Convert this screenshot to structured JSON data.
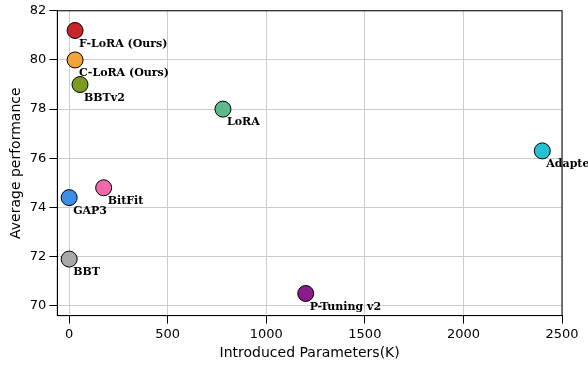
{
  "chart_data": {
    "type": "scatter",
    "x_label": "Introduced Parameters(K)",
    "y_label": "Average performance",
    "xlim": [
      -60,
      2500
    ],
    "ylim": [
      69.6,
      82
    ],
    "xticks": [
      0,
      500,
      1000,
      1500,
      2000,
      2500
    ],
    "yticks": [
      70,
      72,
      74,
      76,
      78,
      80,
      82
    ],
    "grid": true,
    "marker": "circle",
    "data_labels": true,
    "points": [
      {
        "name": "F-LoRA (Ours)",
        "x": 30,
        "y": 81.2,
        "color": "#c9262c"
      },
      {
        "name": "C-LoRA (Ours)",
        "x": 30,
        "y": 80.0,
        "color": "#f2a33a"
      },
      {
        "name": "BBTv2",
        "x": 55,
        "y": 79.0,
        "color": "#7d9b22"
      },
      {
        "name": "LoRA",
        "x": 780,
        "y": 78.0,
        "color": "#5db98b"
      },
      {
        "name": "Adapter",
        "x": 2400,
        "y": 76.3,
        "color": "#23c1d1"
      },
      {
        "name": "BitFit",
        "x": 175,
        "y": 74.8,
        "color": "#f06aa9"
      },
      {
        "name": "GAP3",
        "x": 0,
        "y": 74.4,
        "color": "#3b8fe8"
      },
      {
        "name": "BBT",
        "x": 0,
        "y": 71.9,
        "color": "#a9a9a9"
      },
      {
        "name": "P-Tuning v2",
        "x": 1200,
        "y": 70.5,
        "color": "#8b1b8b"
      }
    ]
  }
}
